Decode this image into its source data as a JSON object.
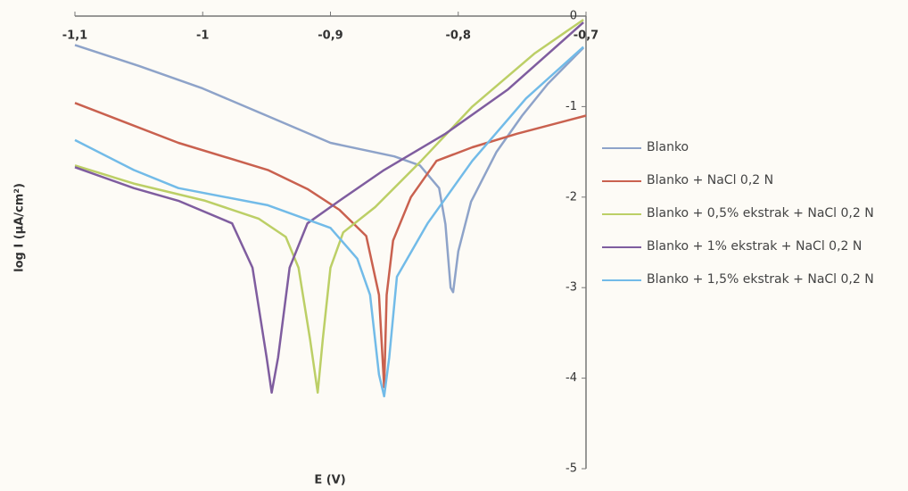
{
  "chart_data": {
    "type": "line",
    "x_label": "E (V)",
    "y_label": "log I (μA/cm²)",
    "xlim": [
      -1.1,
      -0.7
    ],
    "ylim": [
      -5,
      0
    ],
    "xticks": [
      {
        "value": -1.1,
        "label": "-1,1"
      },
      -1,
      {
        "value": -0.9,
        "label": "-0,9"
      },
      {
        "value": -0.8,
        "label": "-0,8"
      },
      {
        "value": -0.7,
        "label": "-0,7"
      }
    ],
    "yticks": [
      0,
      -1,
      -2,
      -3,
      -4,
      -5
    ],
    "grid": false,
    "legend": "right",
    "series": [
      {
        "name": "Blanko",
        "color": "#8ea3c9",
        "x": [
          -1.1,
          -1.05,
          -1.0,
          -0.95,
          -0.9,
          -0.85,
          -0.83,
          -0.815,
          -0.81,
          -0.806,
          -0.804,
          -0.8,
          -0.79,
          -0.77,
          -0.75,
          -0.73,
          -0.702
        ],
        "values": [
          -0.32,
          -0.55,
          -0.8,
          -1.1,
          -1.4,
          -1.55,
          -1.65,
          -1.9,
          -2.3,
          -3.0,
          -3.05,
          -2.6,
          -2.05,
          -1.5,
          -1.1,
          -0.75,
          -0.35
        ]
      },
      {
        "name": "Blanko + NaCl 0,2 N",
        "color": "#c9614f",
        "x": [
          -1.1,
          -1.019,
          -0.949,
          -0.918,
          -0.893,
          -0.872,
          -0.862,
          -0.858,
          -0.856,
          -0.851,
          -0.837,
          -0.817,
          -0.789,
          -0.754,
          -0.7
        ],
        "values": [
          -0.96,
          -1.4,
          -1.7,
          -1.91,
          -2.14,
          -2.43,
          -3.08,
          -4.1,
          -3.08,
          -2.48,
          -2.0,
          -1.6,
          -1.45,
          -1.3,
          -1.1
        ]
      },
      {
        "name": "Blanko + 0,5% ekstrak + NaCl 0,2 N",
        "color": "#bccf66",
        "x": [
          -1.1,
          -1.054,
          -0.998,
          -0.956,
          -0.935,
          -0.925,
          -0.916,
          -0.91,
          -0.906,
          -0.9,
          -0.89,
          -0.865,
          -0.829,
          -0.789,
          -0.74,
          -0.702
        ],
        "values": [
          -1.65,
          -1.85,
          -2.04,
          -2.24,
          -2.44,
          -2.78,
          -3.57,
          -4.16,
          -3.57,
          -2.78,
          -2.39,
          -2.11,
          -1.6,
          -1.0,
          -0.41,
          -0.04
        ]
      },
      {
        "name": "Blanko + 1% ekstrak + NaCl 0,2 N",
        "color": "#7f5d9f",
        "x": [
          -1.1,
          -1.054,
          -1.019,
          -0.977,
          -0.961,
          -0.95,
          -0.946,
          -0.941,
          -0.932,
          -0.918,
          -0.893,
          -0.858,
          -0.81,
          -0.761,
          -0.702
        ],
        "values": [
          -1.67,
          -1.9,
          -2.04,
          -2.29,
          -2.78,
          -3.77,
          -4.16,
          -3.77,
          -2.78,
          -2.29,
          -2.04,
          -1.7,
          -1.3,
          -0.81,
          -0.07
        ]
      },
      {
        "name": "Blanko + 1,5% ekstrak + NaCl 0,2 N",
        "color": "#72bbe8",
        "x": [
          -1.1,
          -1.054,
          -1.019,
          -0.949,
          -0.9,
          -0.879,
          -0.869,
          -0.862,
          -0.858,
          -0.854,
          -0.848,
          -0.824,
          -0.789,
          -0.747,
          -0.702
        ],
        "values": [
          -1.37,
          -1.7,
          -1.9,
          -2.09,
          -2.34,
          -2.68,
          -3.08,
          -3.96,
          -4.2,
          -3.77,
          -2.88,
          -2.29,
          -1.6,
          -0.91,
          -0.34
        ]
      }
    ]
  }
}
